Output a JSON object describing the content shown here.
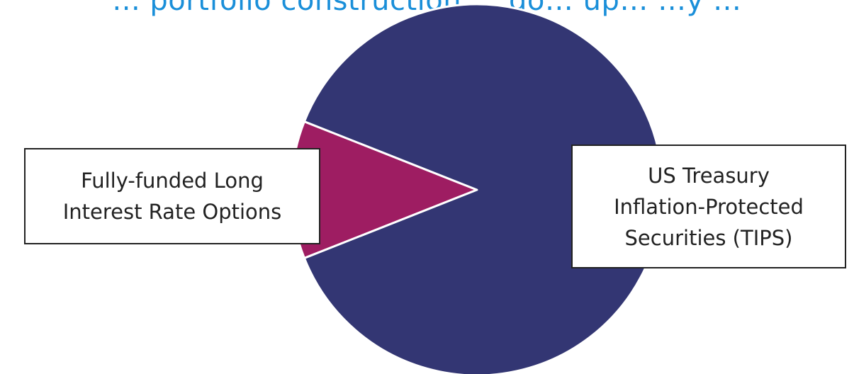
{
  "chart_data": {
    "type": "pie",
    "title": "... portfolio construction … go… up… …y …",
    "slices": [
      {
        "name": "US Treasury\nInflation-Protected\nSecurities (TIPS)",
        "value": 88,
        "color": "#333673"
      },
      {
        "name": "Fully-funded Long\nInterest Rate Options",
        "value": 12,
        "color": "#9e1d62"
      }
    ],
    "slice_border_color": "#ffffff",
    "label_style": "boxed callouts"
  }
}
